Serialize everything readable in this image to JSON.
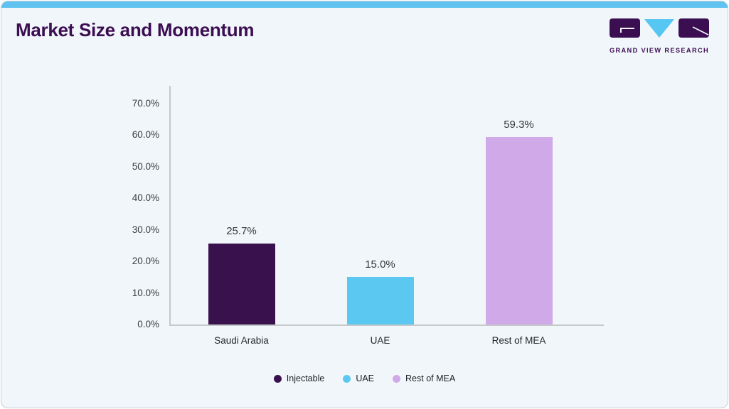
{
  "header": {
    "title": "Market Size and Momentum",
    "logo_text": "GRAND VIEW RESEARCH"
  },
  "theme": {
    "accent_blue": "#60c3ef",
    "brand_purple": "#3b0e52",
    "card_background": "#f1f6fa",
    "card_border": "#c9cfd5",
    "axis_line": "#c6c9cc"
  },
  "chart_data": {
    "type": "bar",
    "title": "Market Size and Momentum",
    "xlabel": "",
    "ylabel": "",
    "categories": [
      "Saudi Arabia",
      "UAE",
      "Rest of MEA"
    ],
    "values": [
      25.7,
      15.0,
      59.3
    ],
    "value_labels": [
      "25.7%",
      "15.0%",
      "59.3%"
    ],
    "bar_colors": [
      "#38114d",
      "#5bc8f1",
      "#d0a9e8"
    ],
    "ylim": [
      0,
      70
    ],
    "ytick_values": [
      0,
      10,
      20,
      30,
      40,
      50,
      60,
      70
    ],
    "ytick_labels": [
      "0.0%",
      "10.0%",
      "20.0%",
      "30.0%",
      "40.0%",
      "50.0%",
      "60.0%",
      "70.0%"
    ],
    "grid": false,
    "legend_position": "bottom",
    "legend": [
      {
        "label": "Injectable",
        "color": "#38114d"
      },
      {
        "label": "UAE",
        "color": "#5bc8f1"
      },
      {
        "label": "Rest of MEA",
        "color": "#d0a9e8"
      }
    ]
  }
}
